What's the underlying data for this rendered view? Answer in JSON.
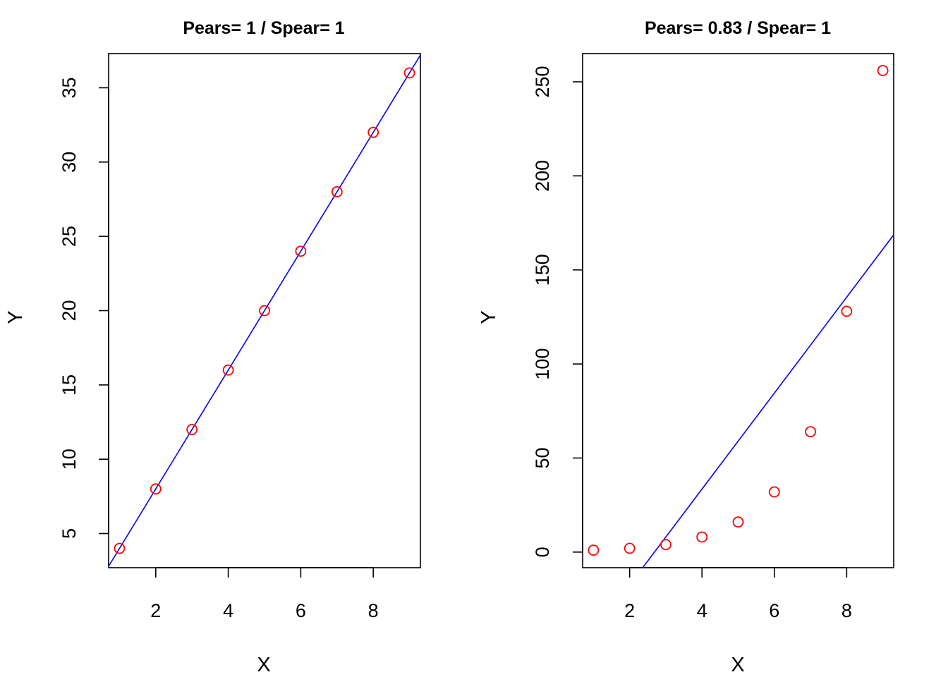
{
  "colors": {
    "points": "#ff0000",
    "fit_line": "#0000ff",
    "axes": "#000000"
  },
  "chart_data": [
    {
      "type": "scatter",
      "title": "Pears=  1  / Spear= 1",
      "xlabel": "X",
      "ylabel": "Y",
      "xlim": [
        0.7,
        9.3
      ],
      "ylim": [
        2.7,
        37.3
      ],
      "xticks": [
        2,
        4,
        6,
        8
      ],
      "yticks": [
        5,
        10,
        15,
        20,
        25,
        30,
        35
      ],
      "x": [
        1,
        2,
        3,
        4,
        5,
        6,
        7,
        8,
        9
      ],
      "y": [
        4,
        8,
        12,
        16,
        20,
        24,
        28,
        32,
        36
      ],
      "fit_line": {
        "intercept": 0,
        "slope": 4
      }
    },
    {
      "type": "scatter",
      "title": "Pears=  0.83  / Spear= 1",
      "xlabel": "X",
      "ylabel": "Y",
      "xlim": [
        0.7,
        9.3
      ],
      "ylim": [
        -8.3,
        265
      ],
      "xticks": [
        2,
        4,
        6,
        8
      ],
      "yticks": [
        0,
        50,
        100,
        150,
        200,
        250
      ],
      "x": [
        1,
        2,
        3,
        4,
        5,
        6,
        7,
        8,
        9
      ],
      "y": [
        1,
        2,
        4,
        8,
        16,
        32,
        64,
        128,
        256
      ],
      "fit_line": {
        "intercept": -68.5,
        "slope": 25.5
      }
    }
  ]
}
